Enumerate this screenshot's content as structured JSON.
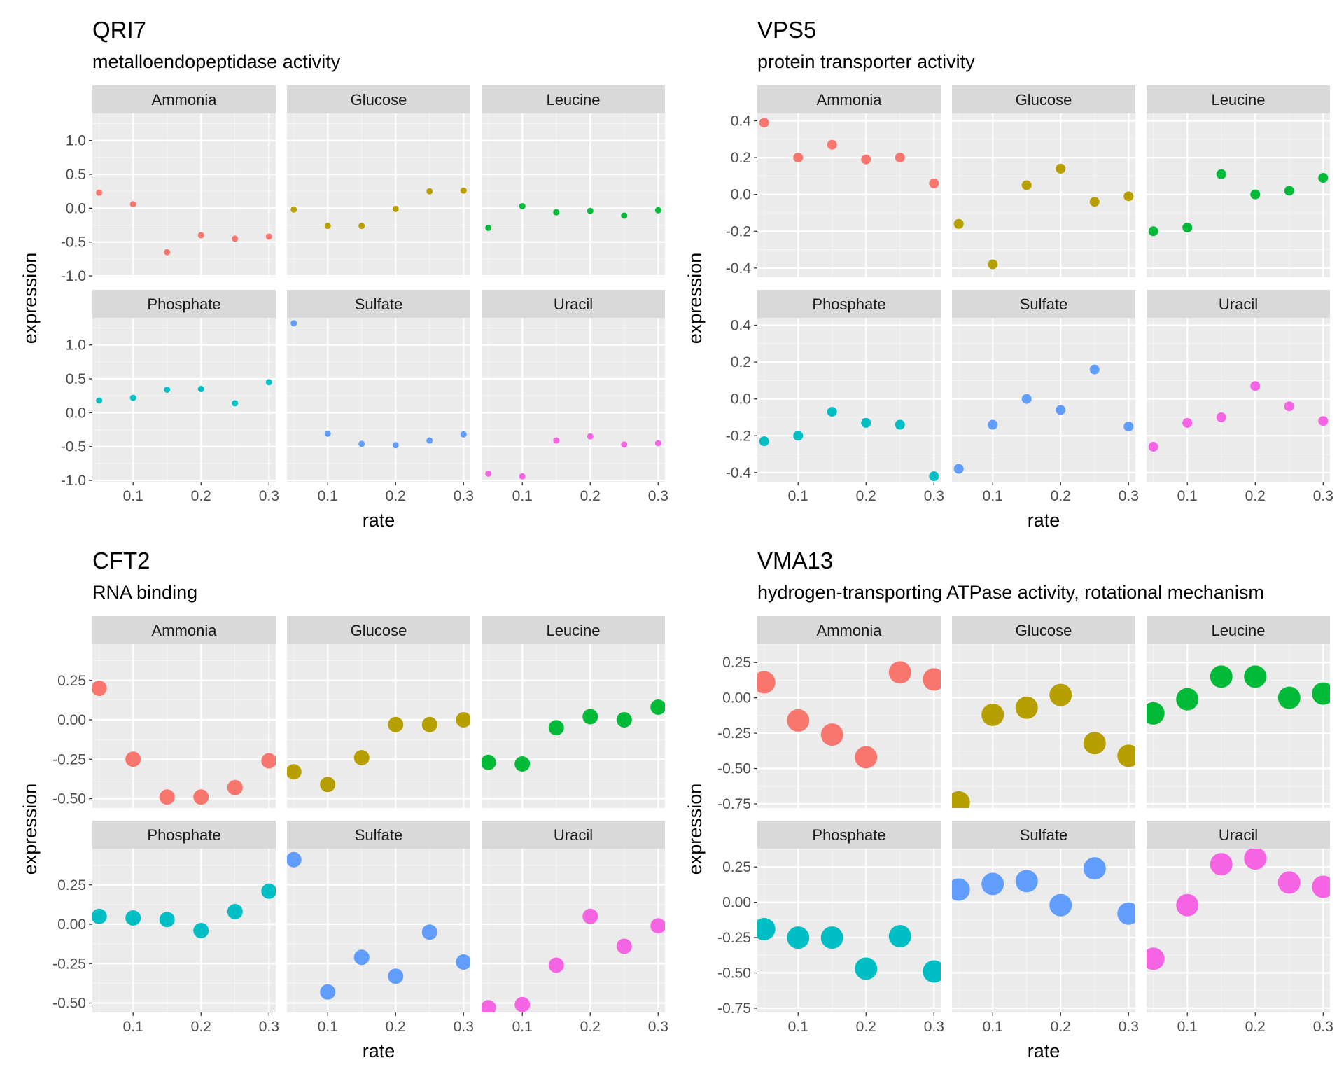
{
  "chart_data": [
    {
      "type": "scatter",
      "title": "QRI7",
      "subtitle": "metalloendopeptidase activity",
      "xlabel": "rate",
      "ylabel": "expression",
      "xlim": [
        0.04,
        0.31
      ],
      "ylim": [
        -1.02,
        1.4
      ],
      "xticks": [
        "0.1",
        "0.2",
        "0.3"
      ],
      "yticks": [
        "-1.0",
        "-0.5",
        "0.0",
        "0.5",
        "1.0"
      ],
      "point_size": "small",
      "grid": true,
      "x": [
        0.05,
        0.1,
        0.15,
        0.2,
        0.25,
        0.3
      ],
      "series": [
        {
          "name": "Ammonia",
          "color": "#F8766D",
          "values": [
            0.23,
            0.06,
            -0.65,
            -0.4,
            -0.45,
            -0.42
          ]
        },
        {
          "name": "Glucose",
          "color": "#B79F00",
          "values": [
            -0.02,
            -0.26,
            -0.26,
            -0.01,
            0.25,
            0.26
          ]
        },
        {
          "name": "Leucine",
          "color": "#00BA38",
          "values": [
            -0.29,
            0.03,
            -0.06,
            -0.04,
            -0.11,
            -0.03
          ]
        },
        {
          "name": "Phosphate",
          "color": "#00BFC4",
          "values": [
            0.18,
            0.22,
            0.34,
            0.35,
            0.14,
            0.45
          ]
        },
        {
          "name": "Sulfate",
          "color": "#619CFF",
          "values": [
            1.32,
            -0.31,
            -0.46,
            -0.48,
            -0.41,
            -0.32
          ]
        },
        {
          "name": "Uracil",
          "color": "#F564E3",
          "values": [
            -0.9,
            -0.94,
            -0.41,
            -0.35,
            -0.47,
            -0.45
          ]
        }
      ]
    },
    {
      "type": "scatter",
      "title": "VPS5",
      "subtitle": "protein transporter activity",
      "xlabel": "rate",
      "ylabel": "expression",
      "xlim": [
        0.04,
        0.31
      ],
      "ylim": [
        -0.45,
        0.44
      ],
      "xticks": [
        "0.1",
        "0.2",
        "0.3"
      ],
      "yticks": [
        "-0.4",
        "-0.2",
        "0.0",
        "0.2",
        "0.4"
      ],
      "point_size": "medium",
      "grid": true,
      "x": [
        0.05,
        0.1,
        0.15,
        0.2,
        0.25,
        0.3
      ],
      "series": [
        {
          "name": "Ammonia",
          "color": "#F8766D",
          "values": [
            0.39,
            0.2,
            0.27,
            0.19,
            0.2,
            0.06
          ]
        },
        {
          "name": "Glucose",
          "color": "#B79F00",
          "values": [
            -0.16,
            -0.38,
            0.05,
            0.14,
            -0.04,
            -0.01
          ]
        },
        {
          "name": "Leucine",
          "color": "#00BA38",
          "values": [
            -0.2,
            -0.18,
            0.11,
            0.0,
            0.02,
            0.09
          ]
        },
        {
          "name": "Phosphate",
          "color": "#00BFC4",
          "values": [
            -0.23,
            -0.2,
            -0.07,
            -0.13,
            -0.14,
            -0.42
          ]
        },
        {
          "name": "Sulfate",
          "color": "#619CFF",
          "values": [
            -0.38,
            -0.14,
            0.0,
            -0.06,
            0.16,
            -0.15
          ]
        },
        {
          "name": "Uracil",
          "color": "#F564E3",
          "values": [
            -0.26,
            -0.13,
            -0.1,
            0.07,
            -0.04,
            -0.12
          ]
        }
      ]
    },
    {
      "type": "scatter",
      "title": "CFT2",
      "subtitle": "RNA binding",
      "xlabel": "rate",
      "ylabel": "expression",
      "xlim": [
        0.04,
        0.31
      ],
      "ylim": [
        -0.56,
        0.48
      ],
      "xticks": [
        "0.1",
        "0.2",
        "0.3"
      ],
      "yticks": [
        "-0.50",
        "-0.25",
        "0.00",
        "0.25"
      ],
      "point_size": "large",
      "grid": true,
      "x": [
        0.05,
        0.1,
        0.15,
        0.2,
        0.25,
        0.3
      ],
      "series": [
        {
          "name": "Ammonia",
          "color": "#F8766D",
          "values": [
            0.2,
            -0.25,
            -0.49,
            -0.49,
            -0.43,
            -0.26
          ]
        },
        {
          "name": "Glucose",
          "color": "#B79F00",
          "values": [
            -0.33,
            -0.41,
            -0.24,
            -0.03,
            -0.03,
            0.0
          ]
        },
        {
          "name": "Leucine",
          "color": "#00BA38",
          "values": [
            -0.27,
            -0.28,
            -0.05,
            0.02,
            0.0,
            0.08
          ]
        },
        {
          "name": "Phosphate",
          "color": "#00BFC4",
          "values": [
            0.05,
            0.04,
            0.03,
            -0.04,
            0.08,
            0.21
          ]
        },
        {
          "name": "Sulfate",
          "color": "#619CFF",
          "values": [
            0.41,
            -0.43,
            -0.21,
            -0.33,
            -0.05,
            -0.24
          ]
        },
        {
          "name": "Uracil",
          "color": "#F564E3",
          "values": [
            -0.53,
            -0.51,
            -0.26,
            0.05,
            -0.14,
            -0.01
          ]
        }
      ]
    },
    {
      "type": "scatter",
      "title": "VMA13",
      "subtitle": "hydrogen-transporting ATPase activity, rotational mechanism",
      "xlabel": "rate",
      "ylabel": "expression",
      "xlim": [
        0.04,
        0.31
      ],
      "ylim": [
        -0.78,
        0.38
      ],
      "xticks": [
        "0.1",
        "0.2",
        "0.3"
      ],
      "yticks": [
        "-0.75",
        "-0.50",
        "-0.25",
        "0.00",
        "0.25"
      ],
      "point_size": "xlarge",
      "grid": true,
      "x": [
        0.05,
        0.1,
        0.15,
        0.2,
        0.25,
        0.3
      ],
      "series": [
        {
          "name": "Ammonia",
          "color": "#F8766D",
          "values": [
            0.11,
            -0.16,
            -0.26,
            -0.42,
            0.18,
            0.13
          ]
        },
        {
          "name": "Glucose",
          "color": "#B79F00",
          "values": [
            -0.74,
            -0.12,
            -0.07,
            0.02,
            -0.32,
            -0.41
          ]
        },
        {
          "name": "Leucine",
          "color": "#00BA38",
          "values": [
            -0.11,
            -0.01,
            0.15,
            0.15,
            0.0,
            0.03
          ]
        },
        {
          "name": "Phosphate",
          "color": "#00BFC4",
          "values": [
            -0.19,
            -0.25,
            -0.25,
            -0.47,
            -0.24,
            -0.49
          ]
        },
        {
          "name": "Sulfate",
          "color": "#619CFF",
          "values": [
            0.09,
            0.13,
            0.15,
            -0.02,
            0.24,
            -0.08
          ]
        },
        {
          "name": "Uracil",
          "color": "#F564E3",
          "values": [
            -0.4,
            -0.02,
            0.27,
            0.31,
            0.14,
            0.11
          ]
        }
      ]
    }
  ]
}
